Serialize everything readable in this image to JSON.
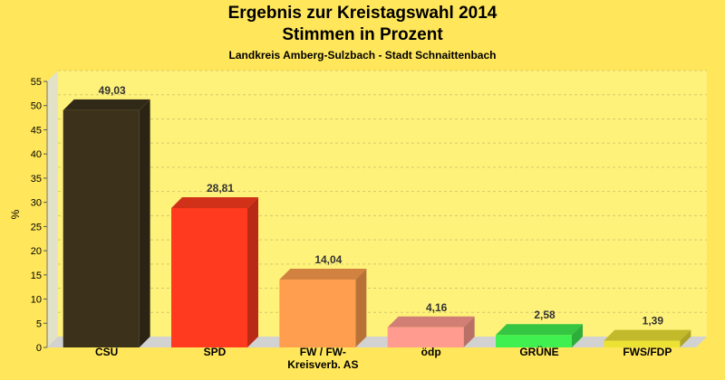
{
  "chart_data": {
    "type": "bar",
    "title_line1": "Ergebnis zur Kreistagswahl 2014",
    "title_line2": "Stimmen in Prozent",
    "subtitle": "Landkreis Amberg-Sulzbach - Stadt Schnaittenbach",
    "ylabel": "%",
    "ylim": [
      0,
      55
    ],
    "yticks": [
      0,
      5,
      10,
      15,
      20,
      25,
      30,
      35,
      40,
      45,
      50,
      55
    ],
    "grid": true,
    "categories": [
      [
        "CSU"
      ],
      [
        "SPD"
      ],
      [
        "FW / FW-",
        "Kreisverb. AS"
      ],
      [
        "ödp"
      ],
      [
        "GRÜNE"
      ],
      [
        "FWS/FDP"
      ]
    ],
    "values": [
      49.03,
      28.81,
      14.04,
      4.16,
      2.58,
      1.39
    ],
    "value_labels": [
      "49,03",
      "28,81",
      "14,04",
      "4,16",
      "2,58",
      "1,39"
    ],
    "colors": [
      "#3c321c",
      "#ff3a1f",
      "#ff9e4e",
      "#ff9b8f",
      "#3ff050",
      "#ece234"
    ]
  }
}
